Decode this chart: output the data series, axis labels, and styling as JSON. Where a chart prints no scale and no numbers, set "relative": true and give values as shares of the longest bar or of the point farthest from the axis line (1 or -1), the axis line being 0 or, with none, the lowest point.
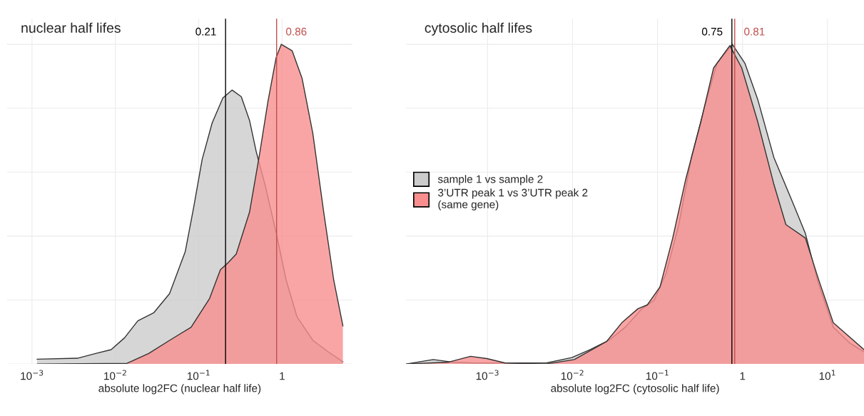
{
  "chart_data": [
    {
      "type": "area",
      "title": "nuclear half lifes",
      "xlabel": "absolute log2FC (nuclear half life)",
      "relative": true,
      "log": "x",
      "grid": true,
      "xlim": [
        0.0005,
        7
      ],
      "xticks": [
        {
          "value": 0.001,
          "label": "10$^{−3}$"
        },
        {
          "value": 0.01,
          "label": "10$^{−2}$"
        },
        {
          "value": 0.1,
          "label": "10$^{−1}$"
        },
        1
      ],
      "series": [
        {
          "color": "#cccccc",
          "x": [
            0.00115,
            0.0035,
            0.0058,
            0.0089,
            0.0129,
            0.0186,
            0.0288,
            0.0447,
            0.069,
            0.087,
            0.11,
            0.145,
            0.195,
            0.251,
            0.324,
            0.407,
            0.49,
            0.63,
            0.85,
            1.12,
            1.51,
            2.34,
            3.63,
            5.37
          ],
          "values": [
            0.015,
            0.018,
            0.033,
            0.045,
            0.082,
            0.135,
            0.16,
            0.22,
            0.352,
            0.49,
            0.64,
            0.754,
            0.832,
            0.857,
            0.836,
            0.762,
            0.664,
            0.557,
            0.41,
            0.262,
            0.148,
            0.074,
            0.037,
            0.007
          ]
        },
        {
          "color": "#f98e8e",
          "x": [
            0.00115,
            0.0138,
            0.0251,
            0.0447,
            0.081,
            0.135,
            0.182,
            0.224,
            0.282,
            0.407,
            0.537,
            0.676,
            0.85,
            0.98,
            1.32,
            1.74,
            2.34,
            3.16,
            4.17,
            5.37
          ],
          "values": [
            0,
            0.002,
            0.033,
            0.074,
            0.115,
            0.205,
            0.295,
            0.316,
            0.344,
            0.475,
            0.656,
            0.82,
            0.959,
            1.0,
            0.98,
            0.893,
            0.721,
            0.475,
            0.262,
            0.119
          ]
        }
      ],
      "ref_lines": [
        {
          "axis": "x",
          "value": 0.21,
          "label": "0.21",
          "color": "#000000"
        },
        {
          "axis": "x",
          "value": 0.86,
          "label": "0.86",
          "color": "#c0504d"
        }
      ]
    },
    {
      "type": "area",
      "title": "cytosolic half lifes",
      "xlabel": "absolute log2FC (cytosolic half life)",
      "relative": true,
      "log": "x",
      "grid": true,
      "legend": "center left",
      "xlim": [
        0.00011,
        26.9
      ],
      "xticks": [
        {
          "value": 0.001,
          "label": "10$^{−3}$"
        },
        {
          "value": 0.01,
          "label": "10$^{−2}$"
        },
        {
          "value": 0.1,
          "label": "10$^{−1}$"
        },
        1,
        {
          "value": 10,
          "label": "10$^{1}$"
        }
      ],
      "series": [
        {
          "name": "sample 1 vs sample 2",
          "color": "#cccccc",
          "x": [
            0.00011,
            0.00023,
            0.00038,
            0.00069,
            0.00195,
            0.0049,
            0.0098,
            0.0162,
            0.0275,
            0.0417,
            0.0646,
            0.091,
            0.126,
            0.178,
            0.251,
            0.355,
            0.5,
            0.76,
            1.07,
            1.51,
            2.34,
            3.89,
            5.5,
            7.76,
            11.7,
            18.2,
            26.9
          ],
          "values": [
            0,
            0.014,
            0.006,
            0.003,
            0.003,
            0.003,
            0.02,
            0.045,
            0.076,
            0.115,
            0.171,
            0.199,
            0.283,
            0.436,
            0.646,
            0.8,
            0.94,
            1.0,
            0.94,
            0.828,
            0.646,
            0.506,
            0.408,
            0.255,
            0.115,
            0.066,
            0.038
          ]
        },
        {
          "name": "3’UTR peak 1 vs 3’UTR peak 2\n(same gene)",
          "color": "#f98e8e",
          "x": [
            0.00011,
            0.00035,
            0.00063,
            0.00098,
            0.00162,
            0.0049,
            0.0105,
            0.0251,
            0.038,
            0.0589,
            0.0759,
            0.107,
            0.151,
            0.214,
            0.324,
            0.457,
            0.71,
            0.98,
            1.51,
            2.34,
            3.24,
            5.5,
            7.76,
            11.7,
            26.9
          ],
          "values": [
            0,
            0.006,
            0.024,
            0.017,
            0.003,
            0,
            0.014,
            0.07,
            0.129,
            0.173,
            0.185,
            0.241,
            0.394,
            0.576,
            0.758,
            0.926,
            0.996,
            0.926,
            0.758,
            0.562,
            0.436,
            0.394,
            0.269,
            0.129,
            0.045
          ]
        }
      ],
      "ref_lines": [
        {
          "axis": "x",
          "value": 0.75,
          "label": "0.75",
          "color": "#000000"
        },
        {
          "axis": "x",
          "value": 0.81,
          "label": "0.81",
          "color": "#c0504d"
        }
      ]
    }
  ]
}
